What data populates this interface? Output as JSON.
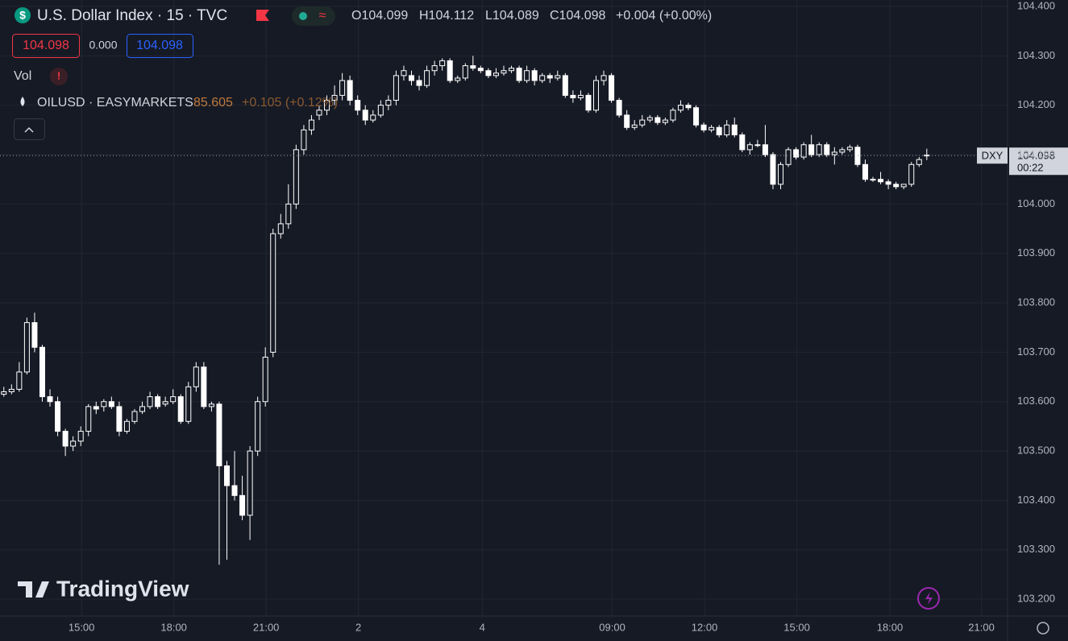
{
  "chart_data": {
    "type": "candlestick",
    "title": "U.S. Dollar Index · 15 · TVC",
    "symbol": "DXY",
    "ohlc_header": [
      "O104.099",
      "H104.112",
      "L104.089",
      "C104.098",
      "+0.004 (+0.00%)"
    ],
    "price_boxes": [
      "104.098",
      "0.000",
      "104.098"
    ],
    "vol_label": "Vol",
    "overlay": {
      "name": "OILUSD · EASYMARKETS",
      "price": "85.605",
      "change": "+0.105 (+0.12%)"
    },
    "last_price": {
      "value": 104.098,
      "label": "104.098",
      "countdown": "00:22"
    },
    "watermark": "TradingView",
    "up_color": "#ffffff",
    "down_color": "#ffffff",
    "background": "#161a25",
    "grid": true,
    "ylim": [
      103.166,
      104.413
    ],
    "yticks": [
      {
        "value": 103.2,
        "label": "103.200"
      },
      {
        "value": 103.3,
        "label": "103.300"
      },
      {
        "value": 103.4,
        "label": "103.400"
      },
      {
        "value": 103.5,
        "label": "103.500"
      },
      {
        "value": 103.6,
        "label": "103.600"
      },
      {
        "value": 103.7,
        "label": "103.700"
      },
      {
        "value": 103.8,
        "label": "103.800"
      },
      {
        "value": 103.9,
        "label": "103.900"
      },
      {
        "value": 104.0,
        "label": "104.000"
      },
      {
        "value": 104.1,
        "label": "104.100"
      },
      {
        "value": 104.2,
        "label": "104.200"
      },
      {
        "value": 104.3,
        "label": "104.300"
      },
      {
        "value": 104.4,
        "label": "104.400"
      }
    ],
    "xlim": [
      0,
      131
    ],
    "xticks": [
      {
        "value": 10.6,
        "label": "15:00"
      },
      {
        "value": 22.6,
        "label": "18:00"
      },
      {
        "value": 34.6,
        "label": "21:00"
      },
      {
        "value": 46.6,
        "label": "2"
      },
      {
        "value": 62.7,
        "label": "4"
      },
      {
        "value": 79.6,
        "label": "09:00"
      },
      {
        "value": 91.6,
        "label": "12:00"
      },
      {
        "value": 103.6,
        "label": "15:00"
      },
      {
        "value": 115.7,
        "label": "18:00"
      },
      {
        "value": 127.6,
        "label": "21:00"
      }
    ],
    "ohlc": [
      [
        103.615,
        103.63,
        103.61,
        103.62
      ],
      [
        103.62,
        103.635,
        103.615,
        103.625
      ],
      [
        103.625,
        103.68,
        103.62,
        103.66
      ],
      [
        103.66,
        103.77,
        103.655,
        103.76
      ],
      [
        103.76,
        103.78,
        103.7,
        103.71
      ],
      [
        103.71,
        103.715,
        103.6,
        103.61
      ],
      [
        103.61,
        103.625,
        103.59,
        103.6
      ],
      [
        103.6,
        103.61,
        103.53,
        103.54
      ],
      [
        103.54,
        103.545,
        103.49,
        103.51
      ],
      [
        103.51,
        103.53,
        103.5,
        103.52
      ],
      [
        103.52,
        103.55,
        103.51,
        103.54
      ],
      [
        103.54,
        103.595,
        103.53,
        103.59
      ],
      [
        103.59,
        103.6,
        103.575,
        103.585
      ],
      [
        103.59,
        103.605,
        103.58,
        103.6
      ],
      [
        103.6,
        103.61,
        103.585,
        103.59
      ],
      [
        103.59,
        103.6,
        103.53,
        103.54
      ],
      [
        103.54,
        103.565,
        103.535,
        103.56
      ],
      [
        103.56,
        103.585,
        103.555,
        103.58
      ],
      [
        103.58,
        103.6,
        103.575,
        103.59
      ],
      [
        103.59,
        103.62,
        103.585,
        103.61
      ],
      [
        103.61,
        103.615,
        103.585,
        103.59
      ],
      [
        103.595,
        103.61,
        103.59,
        103.6
      ],
      [
        103.6,
        103.625,
        103.595,
        103.61
      ],
      [
        103.61,
        103.615,
        103.555,
        103.56
      ],
      [
        103.56,
        103.64,
        103.555,
        103.63
      ],
      [
        103.63,
        103.68,
        103.62,
        103.67
      ],
      [
        103.67,
        103.68,
        103.585,
        103.59
      ],
      [
        103.59,
        103.6,
        103.58,
        103.595
      ],
      [
        103.595,
        103.6,
        103.27,
        103.47
      ],
      [
        103.47,
        103.48,
        103.28,
        103.43
      ],
      [
        103.43,
        103.5,
        103.4,
        103.41
      ],
      [
        103.41,
        103.45,
        103.36,
        103.37
      ],
      [
        103.37,
        103.51,
        103.32,
        103.5
      ],
      [
        103.5,
        103.61,
        103.49,
        103.6
      ],
      [
        103.6,
        103.71,
        103.59,
        103.69
      ],
      [
        103.7,
        103.95,
        103.69,
        103.94
      ],
      [
        103.94,
        103.98,
        103.93,
        103.96
      ],
      [
        103.96,
        104.04,
        103.95,
        104.0
      ],
      [
        104.0,
        104.12,
        103.99,
        104.11
      ],
      [
        104.11,
        104.16,
        104.1,
        104.15
      ],
      [
        104.15,
        104.18,
        104.14,
        104.17
      ],
      [
        104.18,
        104.2,
        104.17,
        104.19
      ],
      [
        104.19,
        104.22,
        104.18,
        104.21
      ],
      [
        104.21,
        104.24,
        104.2,
        104.22
      ],
      [
        104.22,
        104.265,
        104.21,
        104.25
      ],
      [
        104.25,
        104.26,
        104.2,
        104.21
      ],
      [
        104.21,
        104.22,
        104.18,
        104.19
      ],
      [
        104.19,
        104.2,
        104.16,
        104.17
      ],
      [
        104.17,
        104.19,
        104.165,
        104.18
      ],
      [
        104.18,
        104.21,
        104.175,
        104.2
      ],
      [
        104.2,
        104.22,
        104.19,
        104.21
      ],
      [
        104.21,
        104.27,
        104.2,
        104.26
      ],
      [
        104.26,
        104.28,
        104.25,
        104.27
      ],
      [
        104.26,
        104.27,
        104.24,
        104.25
      ],
      [
        104.25,
        104.26,
        104.23,
        104.24
      ],
      [
        104.24,
        104.28,
        104.235,
        104.27
      ],
      [
        104.27,
        104.29,
        104.26,
        104.28
      ],
      [
        104.28,
        104.295,
        104.27,
        104.29
      ],
      [
        104.29,
        104.295,
        104.245,
        104.25
      ],
      [
        104.25,
        104.26,
        104.245,
        104.255
      ],
      [
        104.255,
        104.285,
        104.25,
        104.28
      ],
      [
        104.28,
        104.3,
        104.27,
        104.275
      ],
      [
        104.275,
        104.28,
        104.265,
        104.27
      ],
      [
        104.27,
        104.275,
        104.255,
        104.26
      ],
      [
        104.26,
        104.275,
        104.255,
        104.265
      ],
      [
        104.265,
        104.28,
        104.26,
        104.27
      ],
      [
        104.27,
        104.28,
        104.265,
        104.275
      ],
      [
        104.275,
        104.28,
        104.245,
        104.25
      ],
      [
        104.25,
        104.28,
        104.245,
        104.27
      ],
      [
        104.27,
        104.275,
        104.24,
        104.25
      ],
      [
        104.25,
        104.265,
        104.245,
        104.26
      ],
      [
        104.26,
        104.265,
        104.245,
        104.255
      ],
      [
        104.255,
        104.27,
        104.25,
        104.26
      ],
      [
        104.26,
        104.265,
        104.215,
        104.22
      ],
      [
        104.22,
        104.23,
        104.205,
        104.215
      ],
      [
        104.215,
        104.23,
        104.21,
        104.22
      ],
      [
        104.22,
        104.225,
        104.185,
        104.19
      ],
      [
        104.19,
        104.26,
        104.185,
        104.25
      ],
      [
        104.25,
        104.27,
        104.24,
        104.26
      ],
      [
        104.26,
        104.265,
        104.205,
        104.21
      ],
      [
        104.21,
        104.215,
        104.175,
        104.18
      ],
      [
        104.18,
        104.19,
        104.15,
        104.155
      ],
      [
        104.155,
        104.17,
        104.15,
        104.16
      ],
      [
        104.16,
        104.18,
        104.155,
        104.17
      ],
      [
        104.17,
        104.18,
        104.165,
        104.175
      ],
      [
        104.175,
        104.18,
        104.16,
        104.165
      ],
      [
        104.165,
        104.175,
        104.16,
        104.17
      ],
      [
        104.17,
        104.195,
        104.165,
        104.19
      ],
      [
        104.19,
        104.21,
        104.185,
        104.2
      ],
      [
        104.2,
        104.205,
        104.19,
        104.195
      ],
      [
        104.195,
        104.2,
        104.155,
        104.16
      ],
      [
        104.16,
        104.165,
        104.145,
        104.15
      ],
      [
        104.15,
        104.16,
        104.145,
        104.155
      ],
      [
        104.155,
        104.16,
        104.135,
        104.14
      ],
      [
        104.14,
        104.17,
        104.135,
        104.16
      ],
      [
        104.16,
        104.175,
        104.135,
        104.14
      ],
      [
        104.14,
        104.145,
        104.105,
        104.11
      ],
      [
        104.11,
        104.125,
        104.1,
        104.12
      ],
      [
        104.12,
        104.13,
        104.115,
        104.12
      ],
      [
        104.12,
        104.16,
        104.095,
        104.1
      ],
      [
        104.1,
        104.105,
        104.03,
        104.04
      ],
      [
        104.04,
        104.085,
        104.03,
        104.08
      ],
      [
        104.08,
        104.115,
        104.075,
        104.11
      ],
      [
        104.11,
        104.115,
        104.09,
        104.095
      ],
      [
        104.095,
        104.125,
        104.09,
        104.12
      ],
      [
        104.12,
        104.14,
        104.095,
        104.1
      ],
      [
        104.1,
        104.125,
        104.095,
        104.12
      ],
      [
        104.12,
        104.125,
        104.095,
        104.1
      ],
      [
        104.1,
        104.115,
        104.08,
        104.105
      ],
      [
        104.105,
        104.115,
        104.1,
        104.11
      ],
      [
        104.11,
        104.12,
        104.105,
        104.115
      ],
      [
        104.115,
        104.12,
        104.075,
        104.08
      ],
      [
        104.08,
        104.09,
        104.045,
        104.05
      ],
      [
        104.05,
        104.055,
        104.045,
        104.05
      ],
      [
        104.05,
        104.065,
        104.04,
        104.045
      ],
      [
        104.045,
        104.05,
        104.03,
        104.04
      ],
      [
        104.04,
        104.045,
        104.03,
        104.035
      ],
      [
        104.035,
        104.04,
        104.03,
        104.04
      ],
      [
        104.04,
        104.085,
        104.035,
        104.08
      ],
      [
        104.08,
        104.095,
        104.075,
        104.09
      ],
      [
        104.099,
        104.112,
        104.089,
        104.098
      ]
    ]
  }
}
